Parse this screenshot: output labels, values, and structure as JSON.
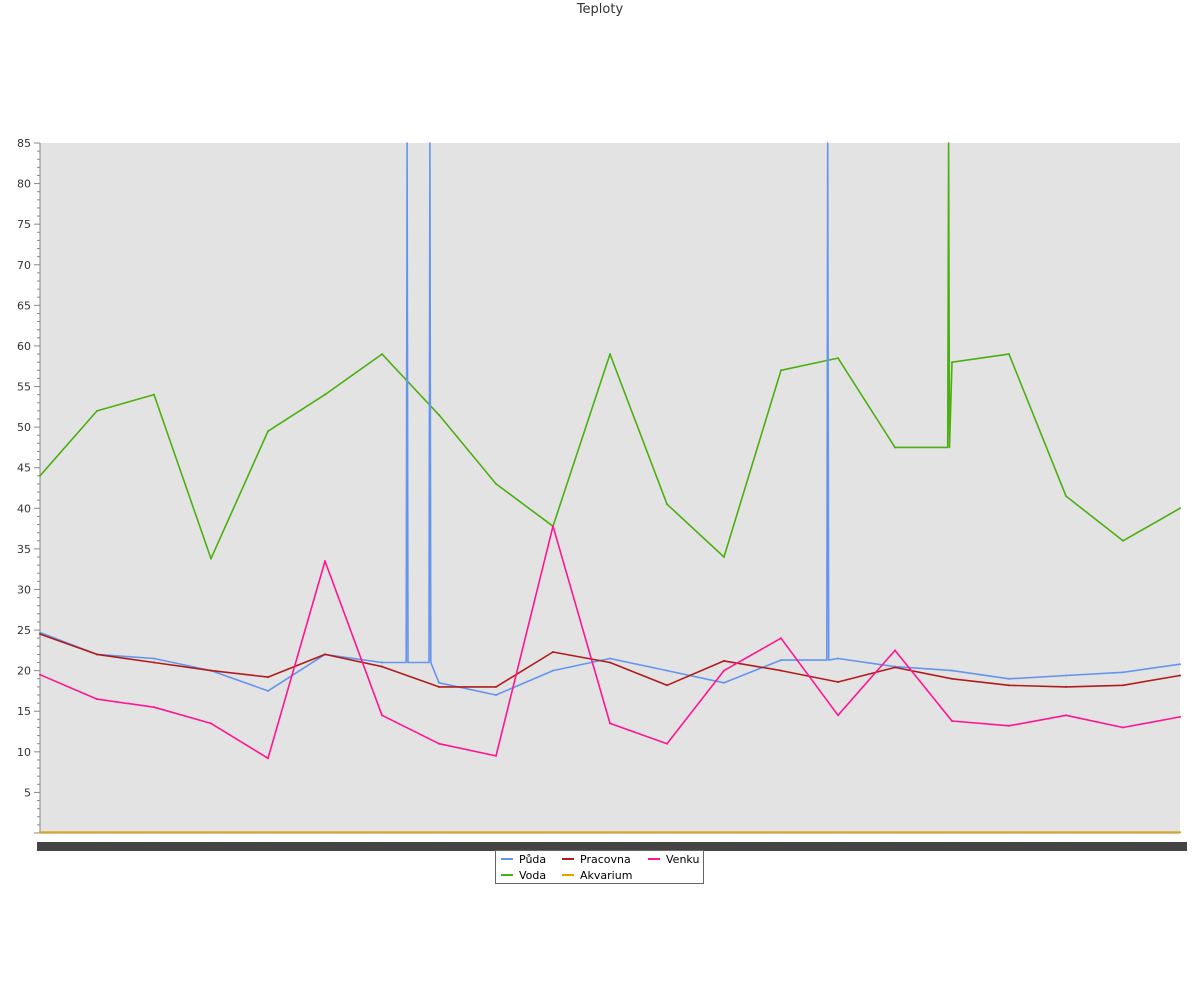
{
  "chart_data": {
    "type": "line",
    "title": "Teploty",
    "xlabel": "",
    "ylabel": "",
    "ylim": [
      0,
      85
    ],
    "yticks": [
      5,
      10,
      15,
      20,
      25,
      30,
      35,
      40,
      45,
      50,
      55,
      60,
      65,
      70,
      75,
      80,
      85
    ],
    "x_tick_labels_note": "x-axis tick labels are illegible (overprinted)",
    "grid": false,
    "legend_position": "bottom",
    "x": [
      0,
      5,
      10,
      15,
      20,
      25,
      30,
      35,
      40,
      45,
      50,
      55,
      60,
      65,
      70,
      75,
      80,
      85,
      90,
      95,
      100
    ],
    "series": [
      {
        "name": "Půda",
        "color": "#6495ed",
        "values": [
          24.7,
          22.0,
          21.5,
          20.0,
          17.5,
          22.0,
          21.0,
          18.5,
          17.0,
          20.0,
          21.5,
          20.0,
          18.5,
          21.3,
          21.5,
          20.5,
          20.0,
          19.0,
          19.4,
          19.8,
          20.8
        ],
        "spikes": [
          {
            "x": 32.2,
            "value": 85
          },
          {
            "x": 34.2,
            "value": 85
          },
          {
            "x": 69.1,
            "value": 85
          }
        ]
      },
      {
        "name": "Voda",
        "color": "#4caf10",
        "values": [
          44.0,
          52.0,
          54.0,
          33.8,
          49.5,
          54.0,
          59.0,
          51.5,
          43.0,
          37.8,
          59.0,
          40.5,
          34.0,
          57.0,
          58.5,
          47.5,
          58.0,
          59.0,
          41.5,
          36.0,
          40.0
        ],
        "spikes": [
          {
            "x": 79.7,
            "value": 85
          }
        ]
      },
      {
        "name": "Pracovna",
        "color": "#b01c1c",
        "values": [
          24.5,
          22.0,
          21.0,
          20.0,
          19.2,
          22.0,
          20.5,
          18.0,
          18.0,
          22.3,
          21.0,
          18.2,
          21.2,
          20.0,
          18.6,
          20.4,
          19.0,
          18.2,
          18.0,
          18.2,
          19.4
        ]
      },
      {
        "name": "Akvarium",
        "color": "#e8a000",
        "values": [
          0.1,
          0.1,
          0.1,
          0.1,
          0.1,
          0.1,
          0.1,
          0.1,
          0.1,
          0.1,
          0.1,
          0.1,
          0.1,
          0.1,
          0.1,
          0.1,
          0.1,
          0.1,
          0.1,
          0.1,
          0.1
        ]
      },
      {
        "name": "Venku",
        "color": "#ff1493",
        "values": [
          19.5,
          16.5,
          15.5,
          13.5,
          9.2,
          33.5,
          14.5,
          11.0,
          9.5,
          37.8,
          13.5,
          11.0,
          20.0,
          24.0,
          14.5,
          22.5,
          13.8,
          13.2,
          14.5,
          13.0,
          14.3
        ]
      }
    ]
  }
}
